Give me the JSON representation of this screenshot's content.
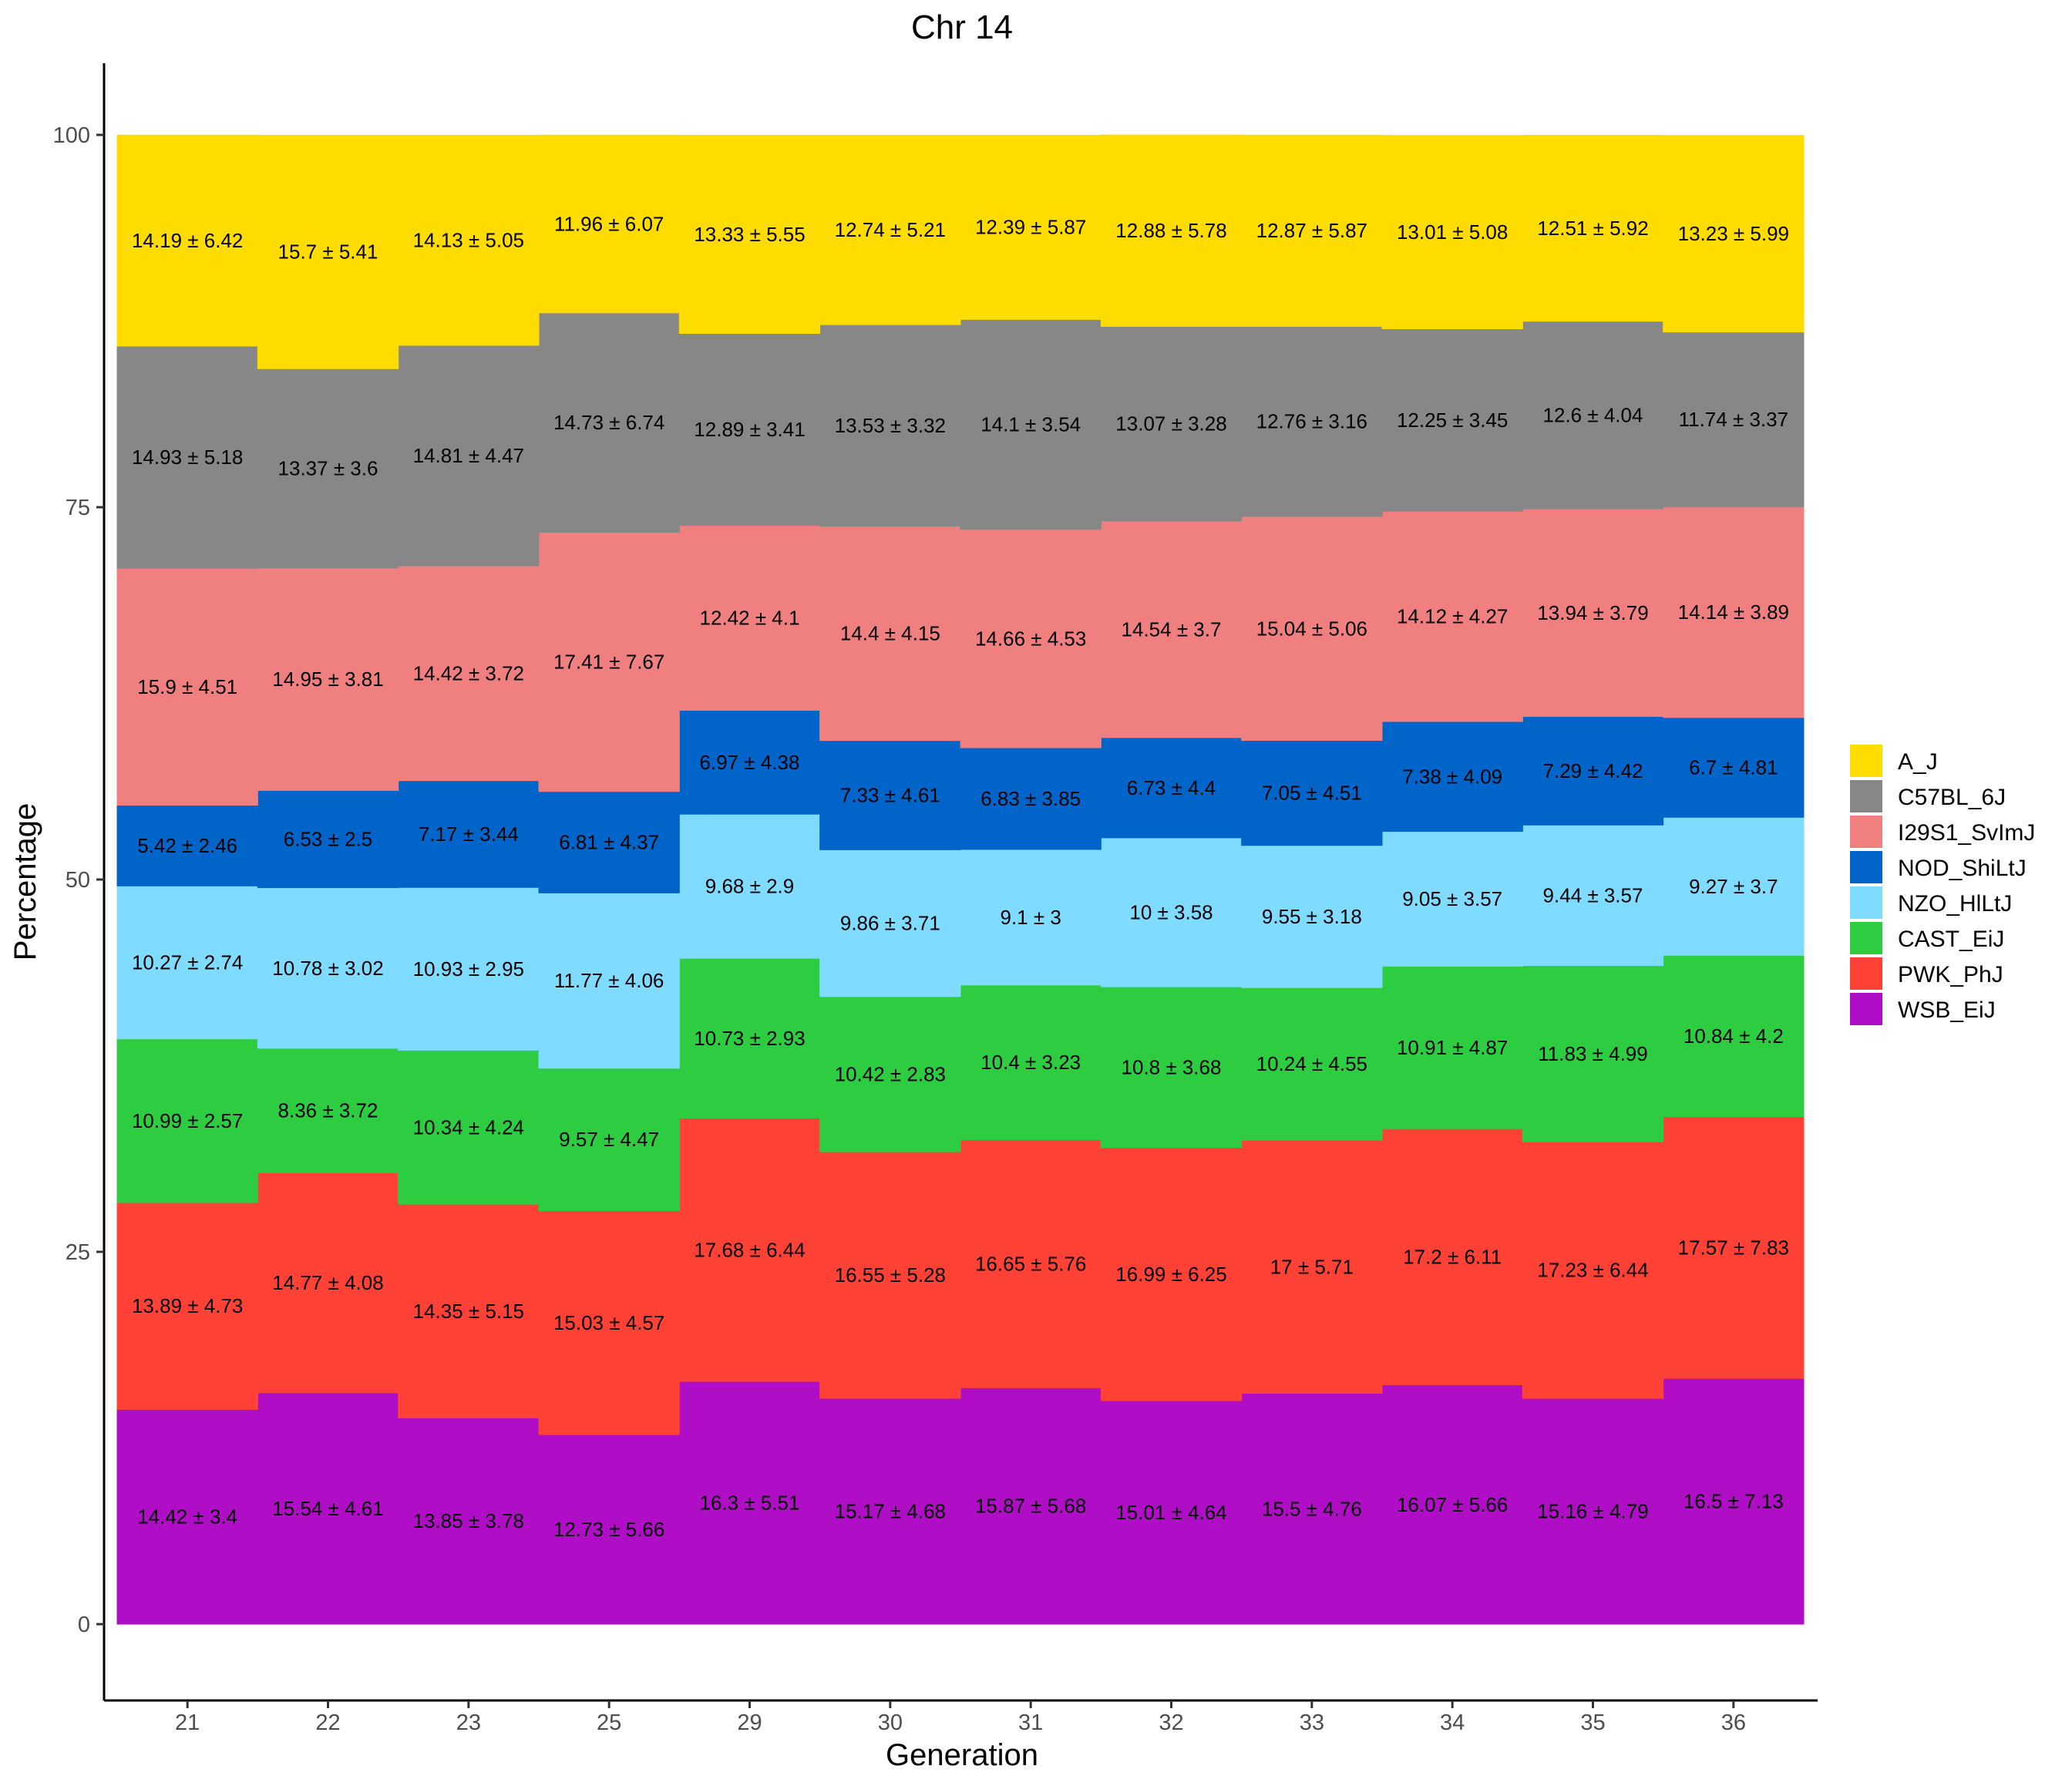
{
  "chart_data": {
    "type": "area",
    "stacked": true,
    "title": "Chr 14",
    "xlabel": "Generation",
    "ylabel": "Percentage",
    "ylim": [
      -5,
      105
    ],
    "yticks": [
      0,
      25,
      50,
      75,
      100
    ],
    "categories": [
      "21",
      "22",
      "23",
      "25",
      "29",
      "30",
      "31",
      "32",
      "33",
      "34",
      "35",
      "36"
    ],
    "legend_position": "right",
    "series": [
      {
        "name": "WSB_EiJ",
        "color": "#B00DC6",
        "values": [
          14.42,
          15.54,
          13.85,
          12.73,
          16.3,
          15.17,
          15.87,
          15.01,
          15.5,
          16.07,
          15.16,
          16.5
        ],
        "labels": [
          "14.42 ± 3.4",
          "15.54 ± 4.61",
          "13.85 ± 3.78",
          "12.73 ± 5.66",
          "16.3 ± 5.51",
          "15.17 ± 4.68",
          "15.87 ± 5.68",
          "15.01 ± 4.64",
          "15.5 ± 4.76",
          "16.07 ± 5.66",
          "15.16 ± 4.79",
          "16.5 ± 7.13"
        ]
      },
      {
        "name": "PWK_PhJ",
        "color": "#FF4136",
        "values": [
          13.89,
          14.77,
          14.35,
          15.03,
          17.68,
          16.55,
          16.65,
          16.99,
          17,
          17.2,
          17.23,
          17.57
        ],
        "labels": [
          "13.89 ± 4.73",
          "14.77 ± 4.08",
          "14.35 ± 5.15",
          "15.03 ± 4.57",
          "17.68 ± 6.44",
          "16.55 ± 5.28",
          "16.65 ± 5.76",
          "16.99 ± 6.25",
          "17 ± 5.71",
          "17.2 ± 6.11",
          "17.23 ± 6.44",
          "17.57 ± 7.83"
        ]
      },
      {
        "name": "CAST_EiJ",
        "color": "#2ECC40",
        "values": [
          10.99,
          8.36,
          10.34,
          9.57,
          10.73,
          10.42,
          10.4,
          10.8,
          10.24,
          10.91,
          11.83,
          10.84
        ],
        "labels": [
          "10.99 ± 2.57",
          "8.36 ± 3.72",
          "10.34 ± 4.24",
          "9.57 ± 4.47",
          "10.73 ± 2.93",
          "10.42 ± 2.83",
          "10.4 ± 3.23",
          "10.8 ± 3.68",
          "10.24 ± 4.55",
          "10.91 ± 4.87",
          "11.83 ± 4.99",
          "10.84 ± 4.2"
        ]
      },
      {
        "name": "NZO_HlLtJ",
        "color": "#7FDBFF",
        "values": [
          10.27,
          10.78,
          10.93,
          11.77,
          9.68,
          9.86,
          9.1,
          10,
          9.55,
          9.05,
          9.44,
          9.27
        ],
        "labels": [
          "10.27 ± 2.74",
          "10.78 ± 3.02",
          "10.93 ± 2.95",
          "11.77 ± 4.06",
          "9.68 ± 2.9",
          "9.86 ± 3.71",
          "9.1 ± 3",
          "10 ± 3.58",
          "9.55 ± 3.18",
          "9.05 ± 3.57",
          "9.44 ± 3.57",
          "9.27 ± 3.7"
        ]
      },
      {
        "name": "NOD_ShiLtJ",
        "color": "#0064C9",
        "values": [
          5.42,
          6.53,
          7.17,
          6.81,
          6.97,
          7.33,
          6.83,
          6.73,
          7.05,
          7.38,
          7.29,
          6.7
        ],
        "labels": [
          "5.42 ± 2.46",
          "6.53 ± 2.5",
          "7.17 ± 3.44",
          "6.81 ± 4.37",
          "6.97 ± 4.38",
          "7.33 ± 4.61",
          "6.83 ± 3.85",
          "6.73 ± 4.4",
          "7.05 ± 4.51",
          "7.38 ± 4.09",
          "7.29 ± 4.42",
          "6.7 ± 4.81"
        ]
      },
      {
        "name": "I29S1_SvImJ",
        "color": "#F08080",
        "values": [
          15.9,
          14.95,
          14.42,
          17.41,
          12.42,
          14.4,
          14.66,
          14.54,
          15.04,
          14.12,
          13.94,
          14.14
        ],
        "labels": [
          "15.9 ± 4.51",
          "14.95 ± 3.81",
          "14.42 ± 3.72",
          "17.41 ± 7.67",
          "12.42 ± 4.1",
          "14.4 ± 4.15",
          "14.66 ± 4.53",
          "14.54 ± 3.7",
          "15.04 ± 5.06",
          "14.12 ± 4.27",
          "13.94 ± 3.79",
          "14.14 ± 3.89"
        ]
      },
      {
        "name": "C57BL_6J",
        "color": "#878787",
        "values": [
          14.93,
          13.37,
          14.81,
          14.73,
          12.89,
          13.53,
          14.1,
          13.07,
          12.76,
          12.25,
          12.6,
          11.74
        ],
        "labels": [
          "14.93 ± 5.18",
          "13.37 ± 3.6",
          "14.81 ± 4.47",
          "14.73 ± 6.74",
          "12.89 ± 3.41",
          "13.53 ± 3.32",
          "14.1 ± 3.54",
          "13.07 ± 3.28",
          "12.76 ± 3.16",
          "12.25 ± 3.45",
          "12.6 ± 4.04",
          "11.74 ± 3.37"
        ]
      },
      {
        "name": "A_J",
        "color": "#FFDC00",
        "values": [
          14.19,
          15.7,
          14.13,
          11.96,
          13.33,
          12.74,
          12.39,
          12.88,
          12.87,
          13.01,
          12.51,
          13.23
        ],
        "labels": [
          "14.19 ± 6.42",
          "15.7 ± 5.41",
          "14.13 ± 5.05",
          "11.96 ± 6.07",
          "13.33 ± 5.55",
          "12.74 ± 5.21",
          "12.39 ± 5.87",
          "12.88 ± 5.78",
          "12.87 ± 5.87",
          "13.01 ± 5.08",
          "12.51 ± 5.92",
          "13.23 ± 5.99"
        ]
      }
    ],
    "legend_entries": [
      "A_J",
      "C57BL_6J",
      "I29S1_SvImJ",
      "NOD_ShiLtJ",
      "NZO_HlLtJ",
      "CAST_EiJ",
      "PWK_PhJ",
      "WSB_EiJ"
    ]
  }
}
